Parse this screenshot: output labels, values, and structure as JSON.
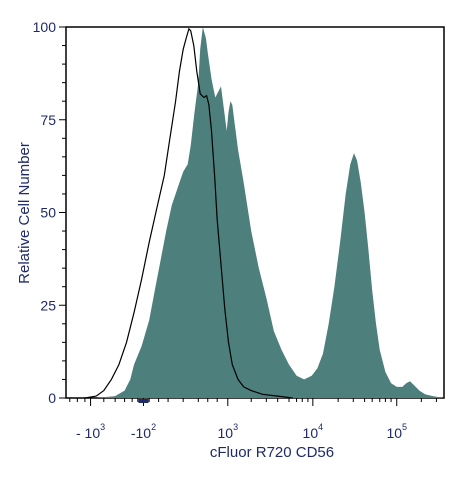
{
  "chart_data": {
    "type": "area",
    "xlabel": "cFluor R720 CD56",
    "ylabel": "Relative Cell Number",
    "ylim": [
      0,
      100
    ],
    "y_ticks": [
      "0",
      "25",
      "50",
      "75",
      "100"
    ],
    "x_ticks": [
      {
        "base": "- 10",
        "exp": "3"
      },
      {
        "base": "-10",
        "exp": "2"
      },
      {
        "base": "10",
        "exp": "3"
      },
      {
        "base": "10",
        "exp": "4"
      },
      {
        "base": "10",
        "exp": "5"
      }
    ],
    "x_scale": "biexponential",
    "series": [
      {
        "style": "filled",
        "color": "#4d7f7d",
        "points": [
          [
            0.08,
            0
          ],
          [
            0.13,
            0.5
          ],
          [
            0.155,
            2
          ],
          [
            0.17,
            5
          ],
          [
            0.18,
            9
          ],
          [
            0.2,
            14
          ],
          [
            0.22,
            21
          ],
          [
            0.235,
            29
          ],
          [
            0.25,
            37
          ],
          [
            0.265,
            45
          ],
          [
            0.28,
            52
          ],
          [
            0.3,
            58
          ],
          [
            0.31,
            61
          ],
          [
            0.322,
            63
          ],
          [
            0.33,
            68
          ],
          [
            0.34,
            77
          ],
          [
            0.35,
            85
          ],
          [
            0.355,
            94
          ],
          [
            0.362,
            100
          ],
          [
            0.37,
            97
          ],
          [
            0.375,
            93
          ],
          [
            0.385,
            86
          ],
          [
            0.395,
            81
          ],
          [
            0.405,
            83
          ],
          [
            0.41,
            84
          ],
          [
            0.415,
            80
          ],
          [
            0.425,
            72
          ],
          [
            0.43,
            77
          ],
          [
            0.435,
            80
          ],
          [
            0.44,
            79
          ],
          [
            0.445,
            75
          ],
          [
            0.455,
            67
          ],
          [
            0.47,
            58
          ],
          [
            0.49,
            45
          ],
          [
            0.51,
            35
          ],
          [
            0.53,
            27
          ],
          [
            0.55,
            18
          ],
          [
            0.57,
            13
          ],
          [
            0.59,
            9
          ],
          [
            0.61,
            6
          ],
          [
            0.63,
            5
          ],
          [
            0.65,
            6
          ],
          [
            0.665,
            8
          ],
          [
            0.68,
            12
          ],
          [
            0.695,
            20
          ],
          [
            0.71,
            30
          ],
          [
            0.725,
            42
          ],
          [
            0.74,
            55
          ],
          [
            0.752,
            63
          ],
          [
            0.762,
            66
          ],
          [
            0.77,
            64
          ],
          [
            0.78,
            58
          ],
          [
            0.79,
            50
          ],
          [
            0.8,
            40
          ],
          [
            0.81,
            29
          ],
          [
            0.82,
            20
          ],
          [
            0.83,
            13
          ],
          [
            0.845,
            7
          ],
          [
            0.86,
            4
          ],
          [
            0.875,
            3
          ],
          [
            0.89,
            3
          ],
          [
            0.9,
            4
          ],
          [
            0.91,
            4.5
          ],
          [
            0.92,
            3.5
          ],
          [
            0.935,
            2
          ],
          [
            0.95,
            1
          ],
          [
            0.97,
            0.5
          ],
          [
            1.0,
            0
          ]
        ]
      },
      {
        "style": "outline",
        "color": "#000000",
        "points": [
          [
            0.05,
            0
          ],
          [
            0.08,
            0.5
          ],
          [
            0.1,
            2
          ],
          [
            0.12,
            5
          ],
          [
            0.14,
            9
          ],
          [
            0.16,
            15
          ],
          [
            0.18,
            23
          ],
          [
            0.2,
            32
          ],
          [
            0.22,
            42
          ],
          [
            0.24,
            51
          ],
          [
            0.26,
            60
          ],
          [
            0.275,
            70
          ],
          [
            0.29,
            80
          ],
          [
            0.3,
            88
          ],
          [
            0.31,
            94
          ],
          [
            0.318,
            97
          ],
          [
            0.325,
            99.5
          ],
          [
            0.33,
            99
          ],
          [
            0.338,
            95
          ],
          [
            0.346,
            88
          ],
          [
            0.355,
            82
          ],
          [
            0.365,
            81
          ],
          [
            0.372,
            81.5
          ],
          [
            0.378,
            79
          ],
          [
            0.385,
            72
          ],
          [
            0.393,
            60
          ],
          [
            0.4,
            48
          ],
          [
            0.41,
            36
          ],
          [
            0.42,
            24
          ],
          [
            0.43,
            15
          ],
          [
            0.44,
            9
          ],
          [
            0.455,
            5
          ],
          [
            0.47,
            3
          ],
          [
            0.49,
            2
          ],
          [
            0.52,
            1
          ],
          [
            0.56,
            0.5
          ],
          [
            0.6,
            0
          ]
        ]
      }
    ]
  }
}
